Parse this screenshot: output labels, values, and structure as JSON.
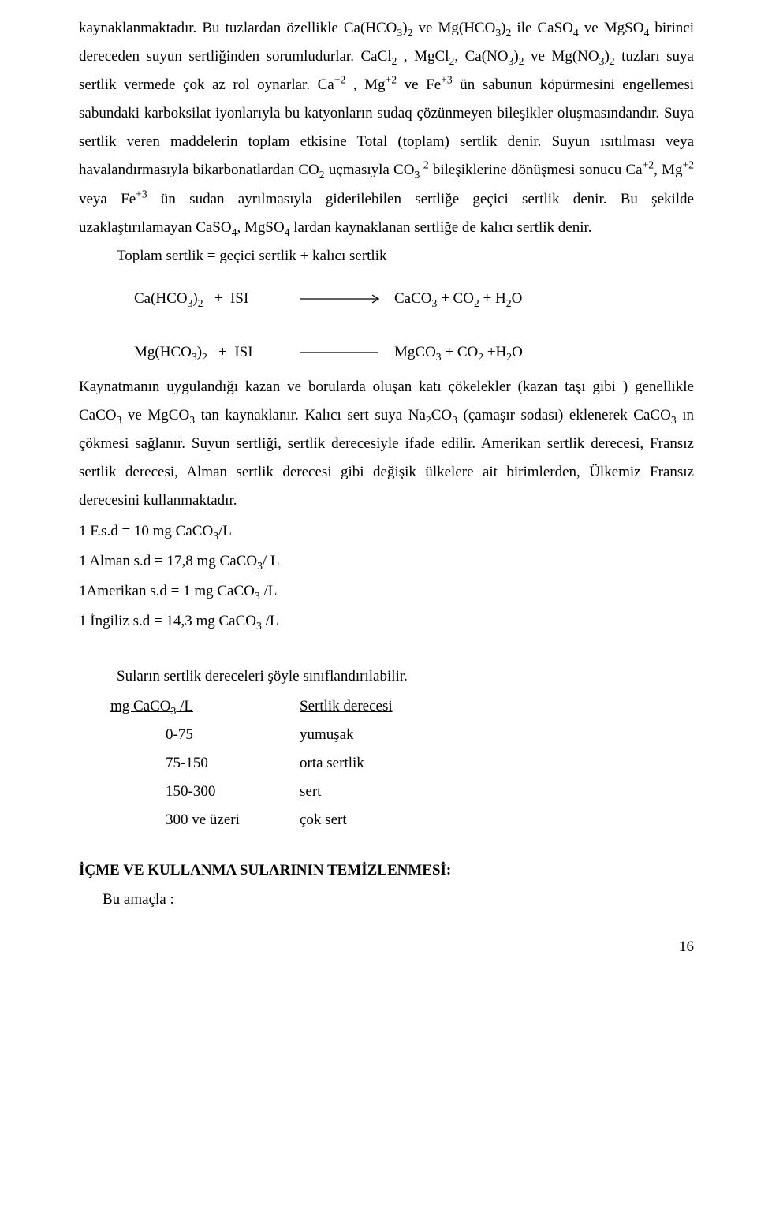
{
  "para1_html": "kaynaklanmaktadır. Bu tuzlardan özellikle Ca(HCO<sub>3</sub>)<sub>2</sub> ve Mg(HCO<sub>3</sub>)<sub>2</sub> ile CaSO<sub>4</sub> ve MgSO<sub>4</sub> birinci dereceden suyun sertliğinden sorumludurlar. CaCl<sub>2</sub> , MgCl<sub>2</sub>, Ca(NO<sub>3</sub>)<sub>2</sub> ve Mg(NO<sub>3</sub>)<sub>2</sub> tuzları suya sertlik vermede çok az rol oynarlar. Ca<sup>+2</sup> ,  Mg<sup>+2</sup> ve Fe<sup>+3</sup> ün sabunun köpürmesini engellemesi sabundaki karboksilat iyonlarıyla bu katyonların sudaq çözünmeyen bileşikler oluşmasındandır. Suya sertlik veren maddelerin toplam etkisine Total (toplam) sertlik denir. Suyun ısıtılması veya havalandırmasıyla bikarbonatlardan CO<sub>2</sub> uçmasıyla CO<sub>3</sub><sup>-2</sup> bileşiklerine dönüşmesi sonucu Ca<sup>+2</sup>, Mg<sup>+2</sup> veya Fe<sup>+3</sup>  ün sudan ayrılmasıyla giderilebilen sertliğe geçici sertlik denir. Bu şekilde uzaklaştırılamayan CaSO<sub>4</sub>, MgSO<sub>4</sub> lardan kaynaklanan sertliğe de kalıcı sertlik denir.",
  "eq_total": "Toplam sertlik =  geçici sertlik + kalıcı sertlik",
  "rxn1_left_html": "Ca(HCO<sub>3</sub>)<sub>2</sub>&nbsp;&nbsp;&nbsp;+&nbsp; ISI",
  "rxn1_right_html": "CaCO<sub>3</sub> + CO<sub>2</sub> + H<sub>2</sub>O",
  "rxn2_left_html": "Mg(HCO<sub>3</sub>)<sub>2</sub>&nbsp;&nbsp;&nbsp;+&nbsp; ISI",
  "rxn2_right_html": "MgCO<sub>3</sub> + CO<sub>2</sub> +H<sub>2</sub>O",
  "para2_html": "Kaynatmanın uygulandığı kazan ve borularda oluşan katı çökelekler (kazan taşı gibi ) genellikle CaCO<sub>3</sub> ve MgCO<sub>3</sub> tan kaynaklanır. Kalıcı sert suya Na<sub>2</sub>CO<sub>3</sub> (çamaşır sodası) eklenerek CaCO<sub>3</sub> ın çökmesi sağlanır.  Suyun sertliği, sertlik derecesiyle ifade edilir. Amerikan sertlik derecesi, Fransız sertlik derecesi, Alman sertlik derecesi gibi değişik ülkelere ait birimlerden, Ülkemiz Fransız derecesini kullanmaktadır.",
  "units": {
    "u1_html": "1 F.s.d = 10 mg CaCO<sub>3</sub>/L",
    "u2_html": "1 Alman s.d = 17,8 mg CaCO<sub>3</sub>/ L",
    "u3_html": "1Amerikan s.d = 1 mg CaCO<sub>3</sub> /L",
    "u4_html": "1 İngiliz s.d = 14,3 mg CaCO<sub>3</sub> /L"
  },
  "class_intro": "Suların sertlik dereceleri şöyle sınıflandırılabilir.",
  "table": {
    "head_col1_html": "mg CaCO<sub>3</sub> /L",
    "head_col2": "Sertlik derecesi",
    "rows": [
      {
        "range": "0-75",
        "label": "yumuşak"
      },
      {
        "range": "75-150",
        "label": "orta sertlik"
      },
      {
        "range": "150-300",
        "label": "sert"
      },
      {
        "range": "300 ve üzeri",
        "label": "çok sert"
      }
    ]
  },
  "heading": "İÇME VE KULLANMA SULARININ TEMİZLENMESİ:",
  "heading_sub": "Bu amaçla :",
  "page_number": "16",
  "arrow_color": "#000000"
}
